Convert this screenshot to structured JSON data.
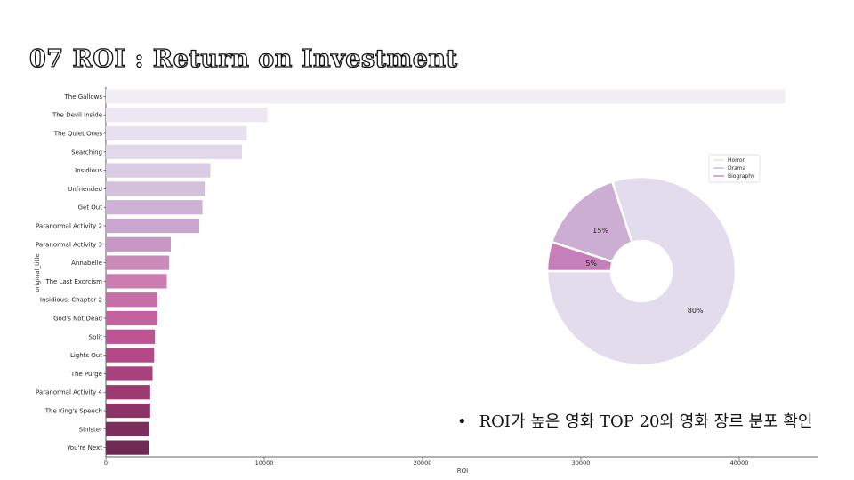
{
  "slide": {
    "title": "07 ROI : Return on Investment",
    "bullet": "ROI가 높은 영화 TOP 20와 영화 장르 분포 확인"
  },
  "chart_data": [
    {
      "type": "bar",
      "orientation": "horizontal",
      "categories": [
        "The Gallows",
        "The Devil Inside",
        "The Quiet Ones",
        "Searching",
        "Insidious",
        "Unfriended",
        "Get Out",
        "Paranormal Activity 2",
        "Paranormal Activity 3",
        "Annabelle",
        "The Last Exorcism",
        "Insidious: Chapter 2",
        "God's Not Dead",
        "Split",
        "Lights Out",
        "The Purge",
        "Paranormal Activity 4",
        "The King's Speech",
        "Sinister",
        "You're Next"
      ],
      "values": [
        42900,
        10200,
        8900,
        8600,
        6600,
        6300,
        6100,
        5900,
        4100,
        4000,
        3850,
        3250,
        3250,
        3100,
        3050,
        2950,
        2800,
        2800,
        2750,
        2700
      ],
      "colors": [
        "#f1eef4",
        "#ece7f2",
        "#e6e0ef",
        "#e1d8ea",
        "#d9cbe1",
        "#d3c0db",
        "#cdb2d5",
        "#c8a6cf",
        "#c697c4",
        "#ca8aba",
        "#cb7db1",
        "#c86ea7",
        "#c5629d",
        "#be5393",
        "#b34a86",
        "#a8427c",
        "#9b3b70",
        "#8c3466",
        "#7c2f5c",
        "#6e2a53"
      ],
      "xlabel": "ROI",
      "ylabel": "original_title",
      "xlim": [
        0,
        45000
      ],
      "xticks": [
        0,
        10000,
        20000,
        30000,
        40000
      ],
      "xtick_labels": [
        "0",
        "10000",
        "20000",
        "30000",
        "40000"
      ]
    },
    {
      "type": "pie",
      "style": "donut",
      "labels": [
        "Horror",
        "Drama",
        "Biography"
      ],
      "values": [
        80,
        15,
        5
      ],
      "value_labels": [
        "80%",
        "15%",
        "5%"
      ],
      "colors": [
        "#e3dcec",
        "#cbaed2",
        "#c77fbb"
      ],
      "legend": "top-right"
    }
  ]
}
